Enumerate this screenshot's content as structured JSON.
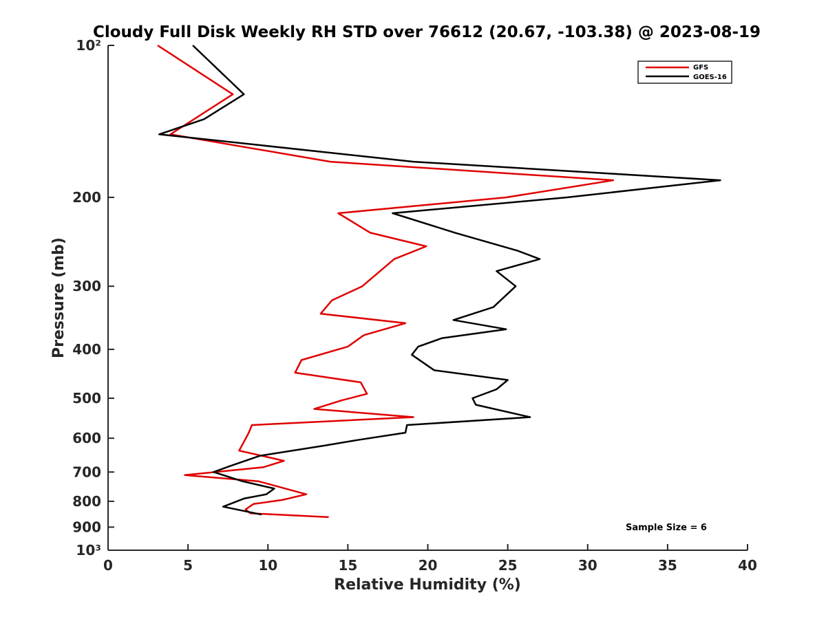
{
  "chart_data": {
    "type": "line",
    "title": "Cloudy Full Disk Weekly RH STD over 76612 (20.67, -103.38) @ 2023-08-19",
    "xlabel": "Relative Humidity (%)",
    "ylabel": "Pressure (mb)",
    "xlim": [
      0,
      40
    ],
    "ylim": [
      100,
      1000
    ],
    "yscale": "log",
    "y_reversed": true,
    "x_ticks": [
      0,
      5,
      10,
      15,
      20,
      25,
      30,
      35,
      40
    ],
    "x_tick_labels": [
      "0",
      "5",
      "10",
      "15",
      "20",
      "25",
      "30",
      "35",
      "40"
    ],
    "y_ticks": [
      100,
      200,
      300,
      400,
      500,
      600,
      700,
      800,
      900,
      1000
    ],
    "y_tick_labels": [
      "10²",
      "200",
      "300",
      "400",
      "500",
      "600",
      "700",
      "800",
      "900",
      "10³"
    ],
    "legend_position": "top-right",
    "series": [
      {
        "name": "GFS",
        "color": "#e00000",
        "points": [
          [
            3.1,
            100
          ],
          [
            7.8,
            125
          ],
          [
            3.9,
            150
          ],
          [
            13.9,
            170
          ],
          [
            31.6,
            185
          ],
          [
            24.9,
            200
          ],
          [
            14.4,
            215
          ],
          [
            16.4,
            235
          ],
          [
            19.9,
            250
          ],
          [
            17.9,
            265
          ],
          [
            15.9,
            300
          ],
          [
            14.0,
            320
          ],
          [
            13.3,
            340
          ],
          [
            18.6,
            355
          ],
          [
            16.0,
            375
          ],
          [
            15.0,
            395
          ],
          [
            12.1,
            420
          ],
          [
            11.7,
            445
          ],
          [
            15.8,
            465
          ],
          [
            16.2,
            490
          ],
          [
            14.6,
            505
          ],
          [
            12.9,
            525
          ],
          [
            19.1,
            545
          ],
          [
            9.0,
            565
          ],
          [
            8.8,
            585
          ],
          [
            8.5,
            610
          ],
          [
            8.2,
            635
          ],
          [
            11.0,
            665
          ],
          [
            9.7,
            685
          ],
          [
            4.8,
            710
          ],
          [
            9.4,
            730
          ],
          [
            11.1,
            755
          ],
          [
            12.4,
            775
          ],
          [
            10.9,
            795
          ],
          [
            9.1,
            810
          ],
          [
            8.6,
            830
          ],
          [
            8.9,
            845
          ],
          [
            13.8,
            860
          ]
        ]
      },
      {
        "name": "GOES-16",
        "color": "#000000",
        "points": [
          [
            5.3,
            100
          ],
          [
            8.5,
            125
          ],
          [
            6.0,
            140
          ],
          [
            3.2,
            150
          ],
          [
            19.1,
            170
          ],
          [
            38.3,
            185
          ],
          [
            28.7,
            200
          ],
          [
            17.8,
            215
          ],
          [
            21.7,
            235
          ],
          [
            25.6,
            255
          ],
          [
            27.0,
            265
          ],
          [
            24.3,
            280
          ],
          [
            25.5,
            300
          ],
          [
            24.1,
            330
          ],
          [
            21.6,
            350
          ],
          [
            24.9,
            365
          ],
          [
            20.9,
            380
          ],
          [
            19.4,
            395
          ],
          [
            19.0,
            410
          ],
          [
            20.4,
            440
          ],
          [
            25.0,
            460
          ],
          [
            24.3,
            480
          ],
          [
            22.8,
            500
          ],
          [
            23.0,
            515
          ],
          [
            26.4,
            545
          ],
          [
            18.7,
            565
          ],
          [
            18.6,
            585
          ],
          [
            15.6,
            605
          ],
          [
            13.6,
            620
          ],
          [
            9.5,
            650
          ],
          [
            7.7,
            680
          ],
          [
            6.6,
            700
          ],
          [
            8.4,
            730
          ],
          [
            10.4,
            755
          ],
          [
            9.9,
            775
          ],
          [
            8.5,
            790
          ],
          [
            7.2,
            820
          ],
          [
            9.6,
            850
          ]
        ]
      }
    ],
    "annotation": "Sample Size = 6"
  }
}
